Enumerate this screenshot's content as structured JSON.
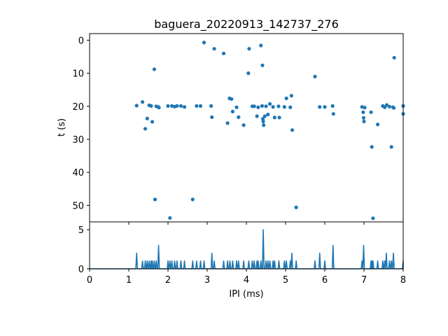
{
  "chart_data": [
    {
      "type": "scatter",
      "title": "baguera_20220913_142737_276",
      "xlabel": "",
      "ylabel": "t (s)",
      "xlim": [
        0,
        8
      ],
      "ylim": [
        55,
        -2
      ],
      "y_inverted": true,
      "yticks": [
        0,
        10,
        20,
        30,
        40,
        50
      ],
      "x_ticklabels_shown": false,
      "color": "#1f77b4",
      "points": [
        {
          "x": 1.2,
          "y": 19.8
        },
        {
          "x": 1.35,
          "y": 18.7
        },
        {
          "x": 1.42,
          "y": 26.8
        },
        {
          "x": 1.47,
          "y": 23.7
        },
        {
          "x": 1.52,
          "y": 19.7
        },
        {
          "x": 1.57,
          "y": 19.9
        },
        {
          "x": 1.6,
          "y": 24.7
        },
        {
          "x": 1.65,
          "y": 8.8
        },
        {
          "x": 1.67,
          "y": 48.2
        },
        {
          "x": 1.7,
          "y": 20.0
        },
        {
          "x": 1.75,
          "y": 20.2
        },
        {
          "x": 1.77,
          "y": 20.4
        },
        {
          "x": 2.0,
          "y": 19.9
        },
        {
          "x": 2.05,
          "y": 53.8
        },
        {
          "x": 2.1,
          "y": 19.9
        },
        {
          "x": 2.17,
          "y": 20.1
        },
        {
          "x": 2.23,
          "y": 19.9
        },
        {
          "x": 2.33,
          "y": 19.9
        },
        {
          "x": 2.42,
          "y": 20.2
        },
        {
          "x": 2.63,
          "y": 48.2
        },
        {
          "x": 2.73,
          "y": 19.9
        },
        {
          "x": 2.83,
          "y": 19.9
        },
        {
          "x": 2.92,
          "y": 0.7
        },
        {
          "x": 3.1,
          "y": 19.9
        },
        {
          "x": 3.12,
          "y": 23.3
        },
        {
          "x": 3.18,
          "y": 2.6
        },
        {
          "x": 3.42,
          "y": 4.0
        },
        {
          "x": 3.52,
          "y": 25.1
        },
        {
          "x": 3.57,
          "y": 17.6
        },
        {
          "x": 3.62,
          "y": 17.8
        },
        {
          "x": 3.65,
          "y": 21.6
        },
        {
          "x": 3.75,
          "y": 20.3
        },
        {
          "x": 3.8,
          "y": 23.3
        },
        {
          "x": 3.93,
          "y": 25.7
        },
        {
          "x": 4.05,
          "y": 10.0
        },
        {
          "x": 4.07,
          "y": 2.6
        },
        {
          "x": 4.15,
          "y": 20.0
        },
        {
          "x": 4.2,
          "y": 20.0
        },
        {
          "x": 4.27,
          "y": 23.0
        },
        {
          "x": 4.3,
          "y": 20.3
        },
        {
          "x": 4.37,
          "y": 1.6
        },
        {
          "x": 4.4,
          "y": 19.9
        },
        {
          "x": 4.41,
          "y": 7.6
        },
        {
          "x": 4.42,
          "y": 23.8
        },
        {
          "x": 4.43,
          "y": 24.6
        },
        {
          "x": 4.44,
          "y": 25.7
        },
        {
          "x": 4.47,
          "y": 23.0
        },
        {
          "x": 4.5,
          "y": 20.0
        },
        {
          "x": 4.55,
          "y": 22.5
        },
        {
          "x": 4.6,
          "y": 19.3
        },
        {
          "x": 4.68,
          "y": 20.2
        },
        {
          "x": 4.72,
          "y": 23.4
        },
        {
          "x": 4.82,
          "y": 20.0
        },
        {
          "x": 4.84,
          "y": 23.4
        },
        {
          "x": 4.97,
          "y": 20.2
        },
        {
          "x": 5.02,
          "y": 17.6
        },
        {
          "x": 5.12,
          "y": 20.3
        },
        {
          "x": 5.15,
          "y": 16.8
        },
        {
          "x": 5.17,
          "y": 27.2
        },
        {
          "x": 5.27,
          "y": 50.6
        },
        {
          "x": 5.75,
          "y": 11.0
        },
        {
          "x": 5.87,
          "y": 20.2
        },
        {
          "x": 6.0,
          "y": 20.2
        },
        {
          "x": 6.2,
          "y": 19.9
        },
        {
          "x": 6.22,
          "y": 22.3
        },
        {
          "x": 6.95,
          "y": 20.2
        },
        {
          "x": 6.98,
          "y": 21.8
        },
        {
          "x": 6.99,
          "y": 23.5
        },
        {
          "x": 7.0,
          "y": 24.6
        },
        {
          "x": 7.02,
          "y": 20.4
        },
        {
          "x": 7.18,
          "y": 21.8
        },
        {
          "x": 7.2,
          "y": 32.3
        },
        {
          "x": 7.23,
          "y": 53.9
        },
        {
          "x": 7.35,
          "y": 25.5
        },
        {
          "x": 7.48,
          "y": 19.9
        },
        {
          "x": 7.53,
          "y": 20.3
        },
        {
          "x": 7.58,
          "y": 19.6
        },
        {
          "x": 7.65,
          "y": 20.1
        },
        {
          "x": 7.7,
          "y": 32.3
        },
        {
          "x": 7.74,
          "y": 20.3
        },
        {
          "x": 7.76,
          "y": 20.5
        },
        {
          "x": 7.77,
          "y": 5.3
        },
        {
          "x": 8.0,
          "y": 19.9
        },
        {
          "x": 8.0,
          "y": 22.3
        }
      ]
    },
    {
      "type": "line",
      "xlabel": "IPI (ms)",
      "ylabel": "",
      "xlim": [
        0,
        8
      ],
      "ylim": [
        0,
        6
      ],
      "xticks": [
        0,
        1,
        2,
        3,
        4,
        5,
        6,
        7,
        8
      ],
      "yticks": [
        0,
        5
      ],
      "color": "#1f77b4",
      "peaks": [
        {
          "x": 1.2,
          "y": 2
        },
        {
          "x": 1.35,
          "y": 1
        },
        {
          "x": 1.42,
          "y": 1
        },
        {
          "x": 1.47,
          "y": 1
        },
        {
          "x": 1.52,
          "y": 1
        },
        {
          "x": 1.57,
          "y": 1
        },
        {
          "x": 1.6,
          "y": 1
        },
        {
          "x": 1.65,
          "y": 1
        },
        {
          "x": 1.7,
          "y": 1
        },
        {
          "x": 1.76,
          "y": 3
        },
        {
          "x": 2.0,
          "y": 1
        },
        {
          "x": 2.05,
          "y": 1
        },
        {
          "x": 2.1,
          "y": 1
        },
        {
          "x": 2.17,
          "y": 1
        },
        {
          "x": 2.23,
          "y": 1
        },
        {
          "x": 2.33,
          "y": 1
        },
        {
          "x": 2.42,
          "y": 1
        },
        {
          "x": 2.63,
          "y": 1
        },
        {
          "x": 2.73,
          "y": 1
        },
        {
          "x": 2.83,
          "y": 1
        },
        {
          "x": 2.92,
          "y": 1
        },
        {
          "x": 3.12,
          "y": 2
        },
        {
          "x": 3.18,
          "y": 1
        },
        {
          "x": 3.42,
          "y": 1
        },
        {
          "x": 3.52,
          "y": 1
        },
        {
          "x": 3.58,
          "y": 1
        },
        {
          "x": 3.65,
          "y": 1
        },
        {
          "x": 3.75,
          "y": 1
        },
        {
          "x": 3.8,
          "y": 1
        },
        {
          "x": 3.93,
          "y": 1
        },
        {
          "x": 4.06,
          "y": 1
        },
        {
          "x": 4.15,
          "y": 1
        },
        {
          "x": 4.2,
          "y": 1
        },
        {
          "x": 4.27,
          "y": 1
        },
        {
          "x": 4.3,
          "y": 1
        },
        {
          "x": 4.37,
          "y": 1
        },
        {
          "x": 4.43,
          "y": 5
        },
        {
          "x": 4.5,
          "y": 1
        },
        {
          "x": 4.55,
          "y": 1
        },
        {
          "x": 4.6,
          "y": 1
        },
        {
          "x": 4.68,
          "y": 1
        },
        {
          "x": 4.72,
          "y": 1
        },
        {
          "x": 4.83,
          "y": 1
        },
        {
          "x": 4.97,
          "y": 1
        },
        {
          "x": 5.02,
          "y": 1
        },
        {
          "x": 5.12,
          "y": 1
        },
        {
          "x": 5.16,
          "y": 2
        },
        {
          "x": 5.27,
          "y": 1
        },
        {
          "x": 5.75,
          "y": 1
        },
        {
          "x": 5.87,
          "y": 2
        },
        {
          "x": 6.0,
          "y": 1
        },
        {
          "x": 6.21,
          "y": 3
        },
        {
          "x": 6.95,
          "y": 1
        },
        {
          "x": 6.99,
          "y": 3
        },
        {
          "x": 7.18,
          "y": 1
        },
        {
          "x": 7.2,
          "y": 1
        },
        {
          "x": 7.23,
          "y": 1
        },
        {
          "x": 7.35,
          "y": 1
        },
        {
          "x": 7.48,
          "y": 1
        },
        {
          "x": 7.53,
          "y": 1
        },
        {
          "x": 7.57,
          "y": 2
        },
        {
          "x": 7.65,
          "y": 1
        },
        {
          "x": 7.7,
          "y": 1
        },
        {
          "x": 7.75,
          "y": 2
        },
        {
          "x": 8.0,
          "y": 1
        }
      ]
    }
  ]
}
